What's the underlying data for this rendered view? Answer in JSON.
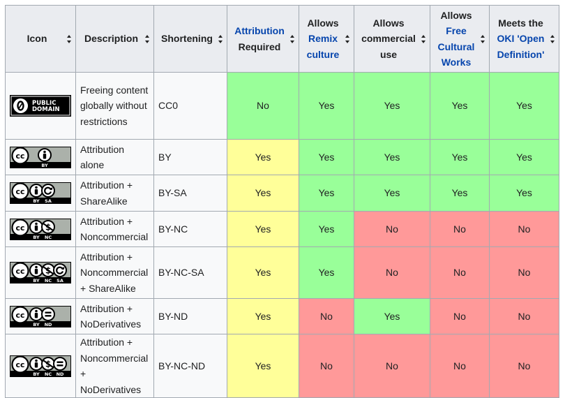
{
  "headers": [
    {
      "key": "icon",
      "parts": [
        {
          "text": "Icon",
          "link": false
        }
      ]
    },
    {
      "key": "description",
      "parts": [
        {
          "text": "Description",
          "link": false
        }
      ]
    },
    {
      "key": "shortening",
      "parts": [
        {
          "text": "Shortening",
          "link": false
        }
      ]
    },
    {
      "key": "attribution",
      "parts": [
        {
          "text": "Attribution",
          "link": true
        },
        {
          "text": "Required",
          "link": false
        }
      ]
    },
    {
      "key": "remix",
      "parts": [
        {
          "text": "Allows",
          "link": false
        },
        {
          "text": "Remix",
          "link": true
        },
        {
          "text": "culture",
          "link": true
        }
      ]
    },
    {
      "key": "commercial",
      "parts": [
        {
          "text": "Allows",
          "link": false
        },
        {
          "text": "commercial",
          "link": false
        },
        {
          "text": "use",
          "link": false
        }
      ]
    },
    {
      "key": "free",
      "parts": [
        {
          "text": "Allows",
          "link": false
        },
        {
          "text": "Free",
          "link": true
        },
        {
          "text": "Cultural",
          "link": true
        },
        {
          "text": "Works",
          "link": true
        }
      ]
    },
    {
      "key": "oki",
      "parts": [
        {
          "text": "Meets the",
          "link": false
        },
        {
          "text": "OKI 'Open",
          "link": true
        },
        {
          "text": "Definition'",
          "link": true
        }
      ]
    }
  ],
  "colors": {
    "green": "#99ff99",
    "yellow": "#ffff99",
    "red": "#ff9999",
    "link": "#0645ad"
  },
  "rows": [
    {
      "badge": "public-domain",
      "badge_text": [
        "PUBLIC",
        "DOMAIN"
      ],
      "description": "Freeing content globally without restrictions",
      "shortening": "CC0",
      "attribution": "No",
      "remix": "Yes",
      "commercial": "Yes",
      "free": "Yes",
      "oki": "Yes",
      "row_height": 96
    },
    {
      "badge": "by",
      "badge_text": [
        "BY"
      ],
      "description": "Attribution alone",
      "shortening": "BY",
      "attribution": "Yes",
      "remix": "Yes",
      "commercial": "Yes",
      "free": "Yes",
      "oki": "Yes",
      "row_height": 51
    },
    {
      "badge": "by-sa",
      "badge_text": [
        "BY",
        "SA"
      ],
      "description": "Attribution + ShareAlike",
      "shortening": "BY-SA",
      "attribution": "Yes",
      "remix": "Yes",
      "commercial": "Yes",
      "free": "Yes",
      "oki": "Yes",
      "row_height": 52
    },
    {
      "badge": "by-nc",
      "badge_text": [
        "BY",
        "NC"
      ],
      "description": "Attribution + Noncommercial",
      "shortening": "BY-NC",
      "attribution": "Yes",
      "remix": "Yes",
      "commercial": "No",
      "free": "No",
      "oki": "No",
      "row_height": 51
    },
    {
      "badge": "by-nc-sa",
      "badge_text": [
        "BY",
        "NC",
        "SA"
      ],
      "description": "Attribution + Noncommercial + ShareAlike",
      "shortening": "BY-NC-SA",
      "attribution": "Yes",
      "remix": "Yes",
      "commercial": "No",
      "free": "No",
      "oki": "No",
      "row_height": 74
    },
    {
      "badge": "by-nd",
      "badge_text": [
        "BY",
        "ND"
      ],
      "description": "Attribution + NoDerivatives",
      "shortening": "BY-ND",
      "attribution": "Yes",
      "remix": "No",
      "commercial": "Yes",
      "free": "No",
      "oki": "No",
      "row_height": 51
    },
    {
      "badge": "by-nc-nd",
      "badge_text": [
        "BY",
        "NC",
        "ND"
      ],
      "description": "Attribution + Noncommercial + NoDerivatives",
      "shortening": "BY-NC-ND",
      "attribution": "Yes",
      "remix": "No",
      "commercial": "No",
      "free": "No",
      "oki": "No",
      "row_height": 74
    }
  ]
}
